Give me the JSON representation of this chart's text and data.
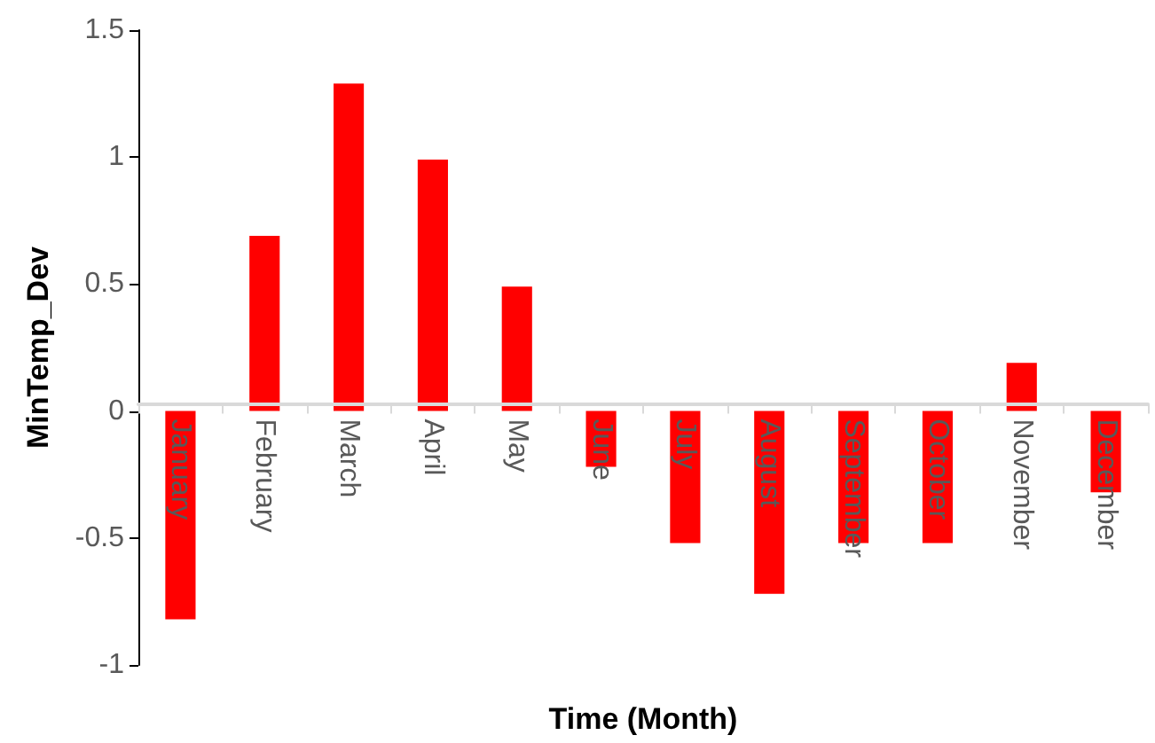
{
  "chart_data": {
    "type": "bar",
    "xlabel": "Time (Month)",
    "ylabel": "MinTemp_Dev",
    "categories": [
      "January",
      "February",
      "March",
      "April",
      "May",
      "June",
      "July",
      "August",
      "September",
      "October",
      "November",
      "December"
    ],
    "values": [
      -0.82,
      0.69,
      1.29,
      0.99,
      0.49,
      -0.22,
      -0.52,
      -0.72,
      -0.52,
      -0.52,
      0.19,
      -0.32
    ],
    "color": "#ff0000",
    "ylim": [
      -1,
      1.5
    ],
    "yticks": [
      -1,
      -0.5,
      0,
      0.5,
      1,
      1.5
    ],
    "grid": false
  }
}
